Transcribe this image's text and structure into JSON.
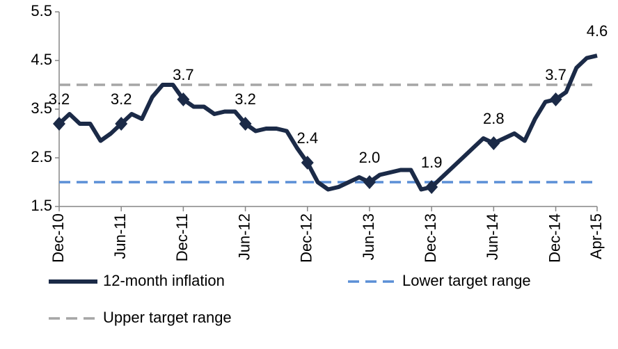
{
  "chart_data": {
    "type": "line",
    "categories": [
      "Dec-10",
      null,
      null,
      null,
      null,
      null,
      "Jun-11",
      null,
      null,
      null,
      null,
      null,
      "Dec-11",
      null,
      null,
      null,
      null,
      null,
      "Jun-12",
      null,
      null,
      null,
      null,
      null,
      "Dec-12",
      null,
      null,
      null,
      null,
      null,
      "Jun-13",
      null,
      null,
      null,
      null,
      null,
      "Dec-13",
      null,
      null,
      null,
      null,
      null,
      "Jun-14",
      null,
      null,
      null,
      null,
      null,
      "Dec-14",
      null,
      null,
      null,
      "Apr-15"
    ],
    "series": [
      {
        "name": "12-month inflation",
        "color": "#1b2a47",
        "style": "solid",
        "markers": true,
        "values": [
          3.2,
          3.4,
          3.2,
          3.2,
          2.85,
          3.0,
          3.2,
          3.4,
          3.3,
          3.75,
          4.0,
          4.0,
          3.7,
          3.55,
          3.55,
          3.4,
          3.45,
          3.45,
          3.2,
          3.05,
          3.1,
          3.1,
          3.05,
          2.7,
          2.4,
          2.0,
          1.85,
          1.9,
          2.0,
          2.1,
          2.0,
          2.15,
          2.2,
          2.25,
          2.25,
          1.85,
          1.9,
          2.1,
          2.3,
          2.5,
          2.7,
          2.9,
          2.8,
          2.9,
          3.0,
          2.85,
          3.3,
          3.65,
          3.7,
          3.85,
          4.35,
          4.55,
          4.6
        ],
        "value_labels": [
          "3.2",
          null,
          null,
          null,
          null,
          null,
          "3.2",
          null,
          null,
          null,
          null,
          null,
          "3.7",
          null,
          null,
          null,
          null,
          null,
          "3.2",
          null,
          null,
          null,
          null,
          null,
          "2.4",
          null,
          null,
          null,
          null,
          null,
          "2.0",
          null,
          null,
          null,
          null,
          null,
          "1.9",
          null,
          null,
          null,
          null,
          null,
          "2.8",
          null,
          null,
          null,
          null,
          null,
          "3.7",
          null,
          null,
          null,
          "4.6"
        ]
      },
      {
        "name": "Lower target range",
        "color": "#5b8fd6",
        "style": "dashed",
        "markers": false,
        "values": [
          2,
          2,
          2,
          2,
          2,
          2,
          2,
          2,
          2,
          2,
          2,
          2,
          2,
          2,
          2,
          2,
          2,
          2,
          2,
          2,
          2,
          2,
          2,
          2,
          2,
          2,
          2,
          2,
          2,
          2,
          2,
          2,
          2,
          2,
          2,
          2,
          2,
          2,
          2,
          2,
          2,
          2,
          2,
          2,
          2,
          2,
          2,
          2,
          2,
          2,
          2,
          2,
          2
        ]
      },
      {
        "name": "Upper target range",
        "color": "#a6a6a6",
        "style": "dashed",
        "markers": false,
        "values": [
          4,
          4,
          4,
          4,
          4,
          4,
          4,
          4,
          4,
          4,
          4,
          4,
          4,
          4,
          4,
          4,
          4,
          4,
          4,
          4,
          4,
          4,
          4,
          4,
          4,
          4,
          4,
          4,
          4,
          4,
          4,
          4,
          4,
          4,
          4,
          4,
          4,
          4,
          4,
          4,
          4,
          4,
          4,
          4,
          4,
          4,
          4,
          4,
          4,
          4,
          4,
          4,
          4
        ]
      }
    ],
    "ylim": [
      1.5,
      5.5
    ],
    "yticks": [
      1.5,
      2.5,
      3.5,
      4.5,
      5.5
    ],
    "grid": false
  }
}
